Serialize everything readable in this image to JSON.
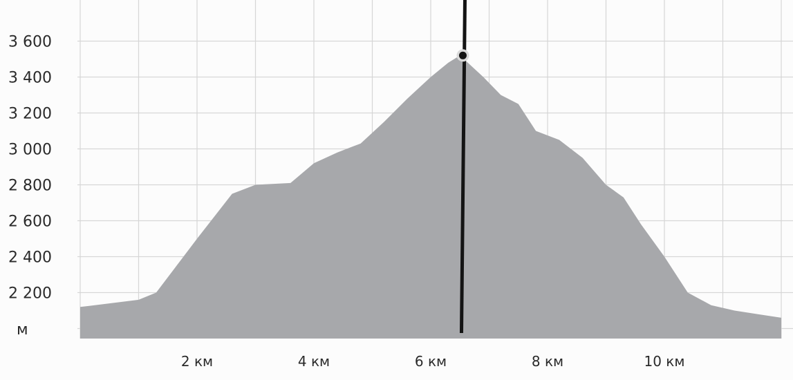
{
  "chart_data": {
    "type": "area",
    "title": "",
    "xlabel": "",
    "ylabel": "м",
    "x_unit": "км",
    "x_ticks": [
      {
        "value": 2,
        "label": "2 км"
      },
      {
        "value": 4,
        "label": "4 км"
      },
      {
        "value": 6,
        "label": "6 км"
      },
      {
        "value": 8,
        "label": "8 км"
      },
      {
        "value": 10,
        "label": "10 км"
      }
    ],
    "y_ticks": [
      {
        "value": 2200,
        "label": "2 200"
      },
      {
        "value": 2400,
        "label": "2 400"
      },
      {
        "value": 2600,
        "label": "2 600"
      },
      {
        "value": 2800,
        "label": "2 800"
      },
      {
        "value": 3000,
        "label": "3 000"
      },
      {
        "value": 3200,
        "label": "3 200"
      },
      {
        "value": 3400,
        "label": "3 400"
      },
      {
        "value": 3600,
        "label": "3 600"
      }
    ],
    "xlim": [
      0,
      12
    ],
    "ylim": [
      2000,
      3700
    ],
    "grid": true,
    "series": [
      {
        "x": [
          0,
          0.5,
          1.0,
          1.3,
          2.0,
          2.6,
          3.0,
          3.6,
          4.0,
          4.4,
          4.8,
          5.2,
          5.6,
          6.0,
          6.3,
          6.5,
          6.9,
          7.2,
          7.5,
          7.8,
          8.2,
          8.6,
          9.0,
          9.3,
          9.6,
          10.0,
          10.4,
          10.8,
          11.2,
          11.6,
          12.0
        ],
        "y": [
          2120,
          2140,
          2160,
          2200,
          2500,
          2750,
          2800,
          2810,
          2920,
          2980,
          3030,
          3150,
          3280,
          3400,
          3480,
          3520,
          3400,
          3300,
          3250,
          3100,
          3050,
          2950,
          2800,
          2730,
          2580,
          2400,
          2200,
          2130,
          2100,
          2080,
          2060
        ]
      }
    ],
    "cursor": {
      "x": 6.55,
      "y": 3520
    },
    "colors": {
      "area": "#a7a8ab",
      "grid": "#d6d6d6",
      "cursor": "#141414",
      "marker_halo": "#d9d9d9"
    }
  }
}
